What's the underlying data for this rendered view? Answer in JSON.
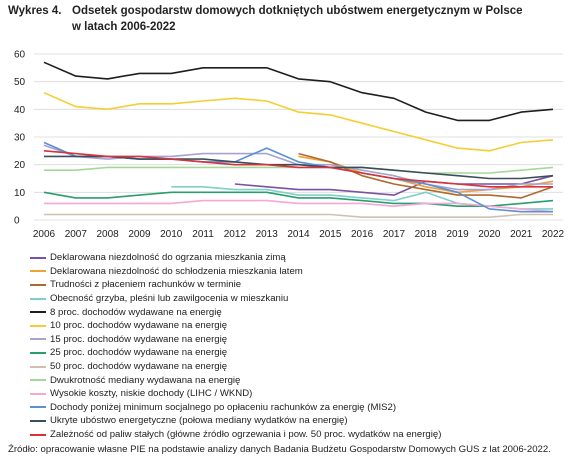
{
  "header": {
    "number": "Wykres 4.",
    "title_line1": "Odsetek gospodarstw domowych dotkniętych ubóstwem energetycznym w Polsce",
    "title_line2": "w latach 2006-2022"
  },
  "source": "Źródło: opracowanie własne PIE na podstawie analizy danych Badania Budżetu Gospodarstw Domowych GUS z lat 2006-2022.",
  "chart_data": {
    "type": "line",
    "title": "Odsetek gospodarstw domowych dotkniętych ubóstwem energetycznym w Polsce w latach 2006-2022",
    "x": [
      2006,
      2007,
      2008,
      2009,
      2010,
      2011,
      2012,
      2013,
      2014,
      2015,
      2016,
      2017,
      2018,
      2019,
      2020,
      2021,
      2022
    ],
    "ylim": [
      0,
      60
    ],
    "yticks": [
      0,
      10,
      20,
      30,
      40,
      50,
      60
    ],
    "grid": true,
    "legend_position": "bottom",
    "series": [
      {
        "name": "Deklarowana niezdolność do ogrzania mieszkania zimą",
        "color": "#7b52a3",
        "values": [
          null,
          null,
          null,
          null,
          null,
          null,
          13,
          12,
          11,
          11,
          10,
          9,
          14,
          13,
          13,
          13,
          16
        ]
      },
      {
        "name": "Deklarowana niezdolność do schłodzenia mieszkania latem",
        "color": "#f0a13a",
        "values": [
          null,
          null,
          null,
          null,
          null,
          null,
          null,
          null,
          23,
          21,
          17,
          15,
          12,
          10,
          11,
          12,
          14
        ]
      },
      {
        "name": "Trudności z płaceniem rachunków w terminie",
        "color": "#b0692a",
        "values": [
          null,
          null,
          null,
          null,
          null,
          null,
          null,
          null,
          24,
          21,
          16,
          13,
          11,
          9,
          9,
          8,
          12
        ]
      },
      {
        "name": "Obecność grzyba, pleśni lub zawilgocenia w mieszkaniu",
        "color": "#7fd0c8",
        "values": [
          null,
          null,
          null,
          null,
          12,
          12,
          11,
          11,
          9,
          9,
          8,
          7,
          10,
          6,
          5,
          4,
          4
        ]
      },
      {
        "name": "8 proc. dochodów wydawane na energię",
        "color": "#1e1e1e",
        "values": [
          57,
          52,
          51,
          53,
          53,
          55,
          55,
          55,
          51,
          50,
          46,
          44,
          39,
          36,
          36,
          39,
          40
        ]
      },
      {
        "name": "10 proc. dochodów wydawane na energię",
        "color": "#f5cd35",
        "values": [
          46,
          41,
          40,
          42,
          42,
          43,
          44,
          43,
          39,
          38,
          35,
          32,
          29,
          26,
          25,
          28,
          29
        ]
      },
      {
        "name": "15 proc. dochodów wydawane na energię",
        "color": "#a7a2cf",
        "values": [
          27,
          23,
          22,
          23,
          23,
          24,
          24,
          24,
          20,
          20,
          18,
          16,
          13,
          11,
          11,
          13,
          13
        ]
      },
      {
        "name": "25 proc. dochodów wydawane na energię",
        "color": "#2b9e6f",
        "values": [
          10,
          8,
          8,
          9,
          10,
          10,
          10,
          10,
          8,
          8,
          7,
          6,
          6,
          5,
          5,
          6,
          7
        ]
      },
      {
        "name": "50 proc. dochodów wydawane na energię",
        "color": "#cfc1ae",
        "values": [
          2,
          2,
          2,
          2,
          2,
          2,
          2,
          2,
          2,
          2,
          1,
          1,
          1,
          1,
          1,
          2,
          2
        ]
      },
      {
        "name": "Dwukrotność mediany wydawana na energię",
        "color": "#a4d89b",
        "values": [
          18,
          18,
          19,
          19,
          19,
          19,
          19,
          19,
          19,
          19,
          19,
          18,
          17,
          17,
          17,
          18,
          19
        ]
      },
      {
        "name": "Wysokie koszty, niskie dochody (LIHC / WKND)",
        "color": "#f5a7d6",
        "values": [
          6,
          6,
          6,
          6,
          6,
          7,
          7,
          7,
          6,
          6,
          6,
          5,
          6,
          6,
          5,
          4,
          3
        ]
      },
      {
        "name": "Dochody poniżej minimum socjalnego po opłaceniu rachunków za energię (MIS2)",
        "color": "#5b8fd6",
        "values": [
          28,
          23,
          23,
          22,
          22,
          21,
          21,
          26,
          21,
          19,
          17,
          15,
          13,
          10,
          4,
          3,
          3
        ]
      },
      {
        "name": "Ukryte ubóstwo energetyczne (połowa mediany wydatków na energię)",
        "color": "#3a4e5a",
        "values": [
          23,
          23,
          23,
          22,
          22,
          22,
          21,
          20,
          20,
          19,
          19,
          18,
          17,
          16,
          15,
          15,
          16
        ]
      },
      {
        "name": "Zależność od paliw stałych (główne źródło ogrzewania i pow. 50 proc. wydatków na energię)",
        "color": "#d6333a",
        "values": [
          25,
          24,
          23,
          23,
          22,
          21,
          20,
          20,
          19,
          19,
          17,
          15,
          14,
          13,
          12,
          12,
          12
        ]
      }
    ]
  }
}
